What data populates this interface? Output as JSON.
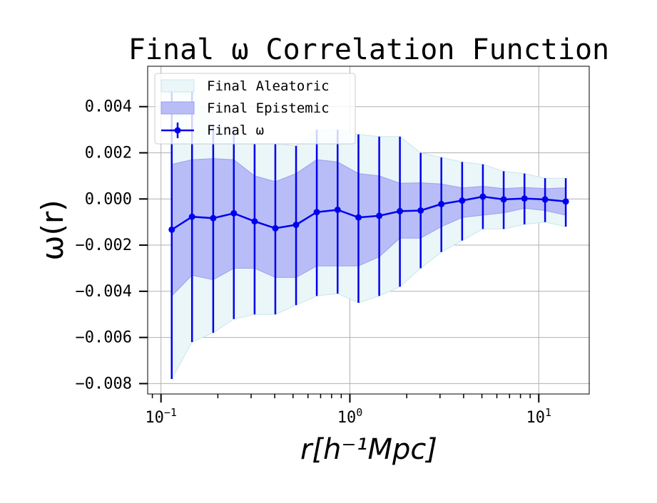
{
  "chart_data": {
    "type": "line",
    "title": "Final ω Correlation Function",
    "xlabel": "r[h⁻¹Mpc]",
    "ylabel": "ω(r)",
    "xscale": "log",
    "xlim": [
      0.085,
      18.5
    ],
    "ylim": [
      -0.00845,
      0.00575
    ],
    "x_ticks": [
      {
        "value": 0.1,
        "base": "10",
        "exp": "−1"
      },
      {
        "value": 1,
        "base": "10",
        "exp": "0"
      },
      {
        "value": 10,
        "base": "10",
        "exp": "1"
      }
    ],
    "y_ticks": [
      {
        "value": 0.004,
        "label": "0.004"
      },
      {
        "value": 0.002,
        "label": "0.002"
      },
      {
        "value": 0.0,
        "label": "0.000"
      },
      {
        "value": -0.002,
        "label": "−0.002"
      },
      {
        "value": -0.004,
        "label": "−0.004"
      },
      {
        "value": -0.006,
        "label": "−0.006"
      },
      {
        "value": -0.008,
        "label": "−0.008"
      }
    ],
    "grid": true,
    "legend_position": "upper-left",
    "legend": [
      {
        "label": "Final Aleatoric",
        "kind": "aleatoric"
      },
      {
        "label": "Final Epistemic",
        "kind": "epistemic"
      },
      {
        "label": "Final ω",
        "kind": "line"
      }
    ],
    "colors": {
      "line": "#0000ee",
      "epistemic_fill": "#b8bdf7",
      "epistemic_edge": "#9aa0f0",
      "aleatoric_fill": "#eaf6f8",
      "aleatoric_edge": "#c9e7ee",
      "grid": "#b0b0b0"
    },
    "x": [
      0.114,
      0.146,
      0.189,
      0.243,
      0.313,
      0.403,
      0.519,
      0.668,
      0.861,
      1.11,
      1.43,
      1.84,
      2.37,
      3.05,
      3.93,
      5.06,
      6.52,
      8.4,
      10.8,
      13.9
    ],
    "y": [
      -0.00133,
      -0.00077,
      -0.00083,
      -0.00062,
      -0.00097,
      -0.00127,
      -0.00112,
      -0.00057,
      -0.00047,
      -0.0008,
      -0.00073,
      -0.00053,
      -0.0005,
      -0.00022,
      -7e-05,
      0.0001,
      -2e-05,
      2e-05,
      -2e-05,
      -0.00011
    ],
    "epistemic_upper": [
      0.0015,
      0.0017,
      0.00175,
      0.0017,
      0.001,
      0.00075,
      0.0011,
      0.0017,
      0.0016,
      0.0011,
      0.001,
      0.00068,
      0.0007,
      0.00065,
      0.00048,
      0.00055,
      0.00045,
      0.0005,
      0.00045,
      0.00048
    ],
    "epistemic_lower": [
      -0.0042,
      -0.0033,
      -0.0035,
      -0.003,
      -0.003,
      -0.0034,
      -0.0034,
      -0.0029,
      -0.0029,
      -0.0029,
      -0.0025,
      -0.0017,
      -0.0017,
      -0.0012,
      -0.0008,
      -0.0007,
      -0.0006,
      -0.0004,
      -0.0005,
      -0.0007
    ],
    "aleatoric_upper": [
      0.005,
      0.0047,
      0.0032,
      0.003,
      0.0024,
      0.0024,
      0.0023,
      0.003,
      0.003,
      0.0028,
      0.0027,
      0.0027,
      0.002,
      0.0018,
      0.0016,
      0.0015,
      0.0012,
      0.0011,
      0.0009,
      0.0009
    ],
    "aleatoric_lower": [
      -0.0078,
      -0.0062,
      -0.0058,
      -0.0052,
      -0.005,
      -0.005,
      -0.0046,
      -0.0042,
      -0.0041,
      -0.0045,
      -0.0042,
      -0.0038,
      -0.003,
      -0.0023,
      -0.0018,
      -0.0013,
      -0.0013,
      -0.0011,
      -0.001,
      -0.0012
    ]
  }
}
